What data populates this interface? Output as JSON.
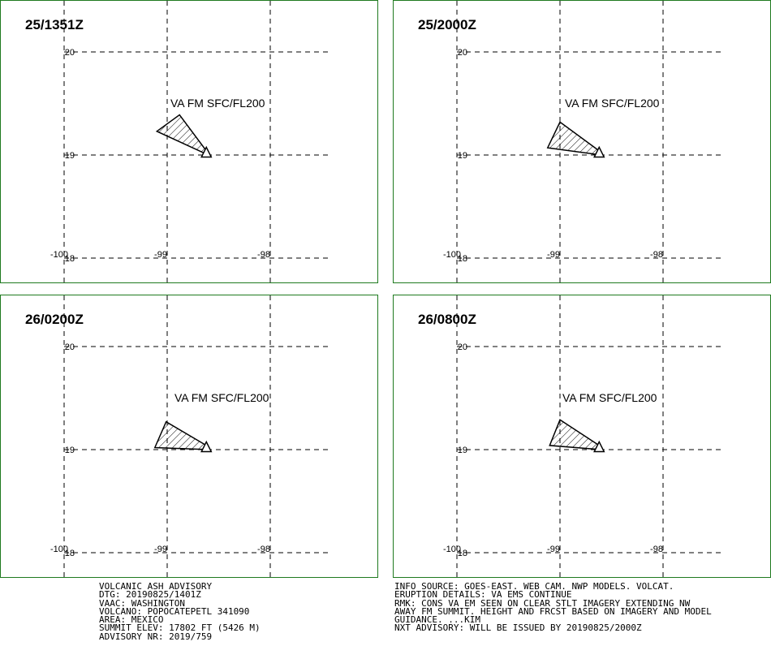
{
  "panels": [
    {
      "time": "25/1351Z",
      "label": "VA FM SFC/FL200",
      "lat_labels": [
        "20",
        "19",
        "18"
      ],
      "lon_labels": [
        "-100",
        "-99",
        "-98"
      ],
      "polygon": [
        [
          -99.1,
          19.23
        ],
        [
          -98.88,
          19.39
        ],
        [
          -98.62,
          19.04
        ],
        [
          -98.6,
          19.0
        ]
      ]
    },
    {
      "time": "25/2000Z",
      "label": "VA FM SFC/FL200",
      "lat_labels": [
        "20",
        "19",
        "18"
      ],
      "lon_labels": [
        "-100",
        "-99",
        "-98"
      ],
      "polygon": [
        [
          -99.12,
          19.07
        ],
        [
          -99.0,
          19.32
        ],
        [
          -98.62,
          19.04
        ],
        [
          -98.6,
          19.0
        ]
      ]
    },
    {
      "time": "26/0200Z",
      "label": "VA FM SFC/FL200",
      "lat_labels": [
        "20",
        "19",
        "18"
      ],
      "lon_labels": [
        "-100",
        "-99",
        "-98"
      ],
      "polygon": [
        [
          -99.12,
          19.02
        ],
        [
          -99.01,
          19.27
        ],
        [
          -98.62,
          19.04
        ],
        [
          -98.6,
          19.0
        ]
      ]
    },
    {
      "time": "26/0800Z",
      "label": "VA FM SFC/FL200",
      "lat_labels": [
        "20",
        "19",
        "18"
      ],
      "lon_labels": [
        "-100",
        "-99",
        "-98"
      ],
      "polygon": [
        [
          -99.1,
          19.04
        ],
        [
          -99.0,
          19.29
        ],
        [
          -98.62,
          19.04
        ],
        [
          -98.6,
          19.0
        ]
      ]
    }
  ],
  "volcano": {
    "lon": -98.62,
    "lat": 19.02
  },
  "map_extent": {
    "lon": [
      -100,
      -98
    ],
    "lat": [
      18,
      20
    ]
  },
  "advisory_left": [
    "VOLCANIC ASH ADVISORY",
    "DTG: 20190825/1401Z",
    "VAAC: WASHINGTON",
    "VOLCANO: POPOCATEPETL 341090",
    "AREA: MEXICO",
    "SUMMIT ELEV: 17802 FT (5426 M)",
    "ADVISORY NR: 2019/759"
  ],
  "advisory_right": [
    "INFO SOURCE: GOES-EAST. WEB CAM. NWP MODELS. VOLCAT.",
    "ERUPTION DETAILS: VA EMS CONTINUE",
    "RMK: CONS VA EM SEEN ON CLEAR STLT IMAGERY EXTENDING NW",
    "AWAY FM SUMMIT. HEIGHT AND FRCST BASED ON IMAGERY AND MODEL",
    "GUIDANCE. ...KIM",
    "NXT ADVISORY: WILL BE ISSUED BY 20190825/2000Z"
  ],
  "colors": {
    "panel_border": "#1f7a1f",
    "ink": "#000000",
    "background": "#ffffff"
  }
}
